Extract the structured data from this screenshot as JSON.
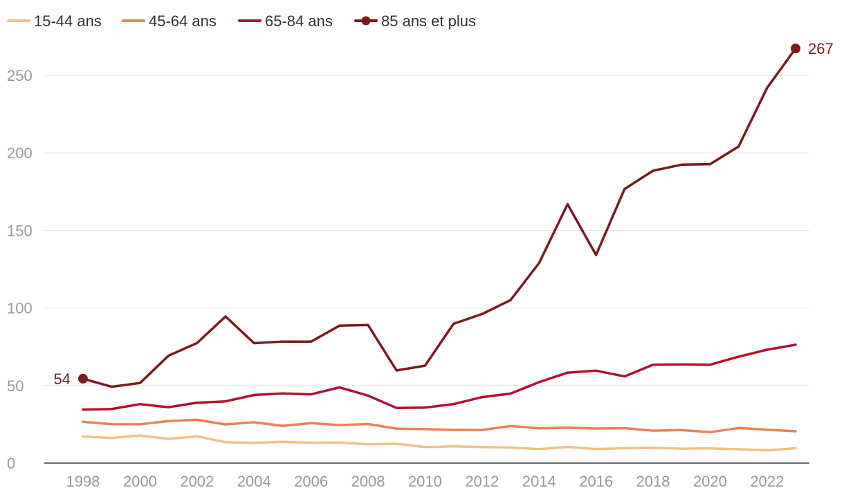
{
  "chart_data": {
    "type": "line",
    "title": "",
    "xlabel": "",
    "ylabel": "",
    "x": [
      1998,
      1999,
      2000,
      2001,
      2002,
      2003,
      2004,
      2005,
      2006,
      2007,
      2008,
      2009,
      2010,
      2011,
      2012,
      2013,
      2014,
      2015,
      2016,
      2017,
      2018,
      2019,
      2020,
      2021,
      2022,
      2023
    ],
    "x_ticks": [
      1998,
      2000,
      2002,
      2004,
      2006,
      2008,
      2010,
      2012,
      2014,
      2016,
      2018,
      2020,
      2022
    ],
    "x_tick_labels": [
      "1998",
      "2000",
      "2002",
      "2004",
      "2006",
      "2008",
      "2010",
      "2012",
      "2014",
      "2016",
      "2018",
      "2020",
      "2022"
    ],
    "y_ticks": [
      0,
      50,
      100,
      150,
      200,
      250
    ],
    "y_tick_labels": [
      "0",
      "50",
      "100",
      "150",
      "200",
      "250"
    ],
    "xlim": [
      1998,
      2023
    ],
    "ylim": [
      0,
      267
    ],
    "grid": "horizontal",
    "legend_position": "top-left",
    "series": [
      {
        "name": "15-44 ans",
        "color": "#F0C287",
        "marker": false,
        "values": [
          17.1,
          16.2,
          17.8,
          15.6,
          17.2,
          13.4,
          13,
          13.7,
          13.1,
          13.2,
          12.1,
          12.5,
          10.3,
          10.8,
          10.4,
          10,
          9,
          10.4,
          9.1,
          9.6,
          9.8,
          9.3,
          9.5,
          8.9,
          8.2,
          9.6
        ]
      },
      {
        "name": "45-64 ans",
        "color": "#EE8058",
        "marker": false,
        "values": [
          26.6,
          25.1,
          25,
          27.1,
          27.9,
          24.9,
          26.3,
          24,
          25.7,
          24.5,
          25.2,
          22.2,
          21.9,
          21.4,
          21.3,
          23.9,
          22.4,
          22.8,
          22.3,
          22.5,
          20.9,
          21.3,
          19.9,
          22.6,
          21.5,
          20.5
        ]
      },
      {
        "name": "65-84 ans",
        "color": "#B3102E",
        "marker": false,
        "values": [
          34.5,
          34.8,
          38,
          36,
          38.9,
          39.8,
          43.9,
          44.9,
          44.3,
          48.8,
          43.5,
          35.5,
          35.8,
          38,
          42.5,
          44.8,
          52.2,
          58.3,
          59.6,
          55.9,
          63.4,
          63.6,
          63.4,
          68.6,
          73.1,
          76.3
        ]
      },
      {
        "name": "85 ans et plus",
        "color": "#7A1A1C",
        "marker": true,
        "values": [
          54.4,
          49.2,
          51.6,
          69.2,
          77.4,
          94.5,
          77.3,
          78.3,
          78.3,
          88.6,
          89,
          59.7,
          62.8,
          89.8,
          96.1,
          105.1,
          128.9,
          166.9,
          134.2,
          176.7,
          188.5,
          192.4,
          192.7,
          204.1,
          241.9,
          267.3
        ]
      }
    ],
    "annotations": [
      {
        "series": "85 ans et plus",
        "x": 1998,
        "text": "54",
        "side": "left"
      },
      {
        "series": "85 ans et plus",
        "x": 2023,
        "text": "267",
        "side": "right"
      }
    ]
  }
}
